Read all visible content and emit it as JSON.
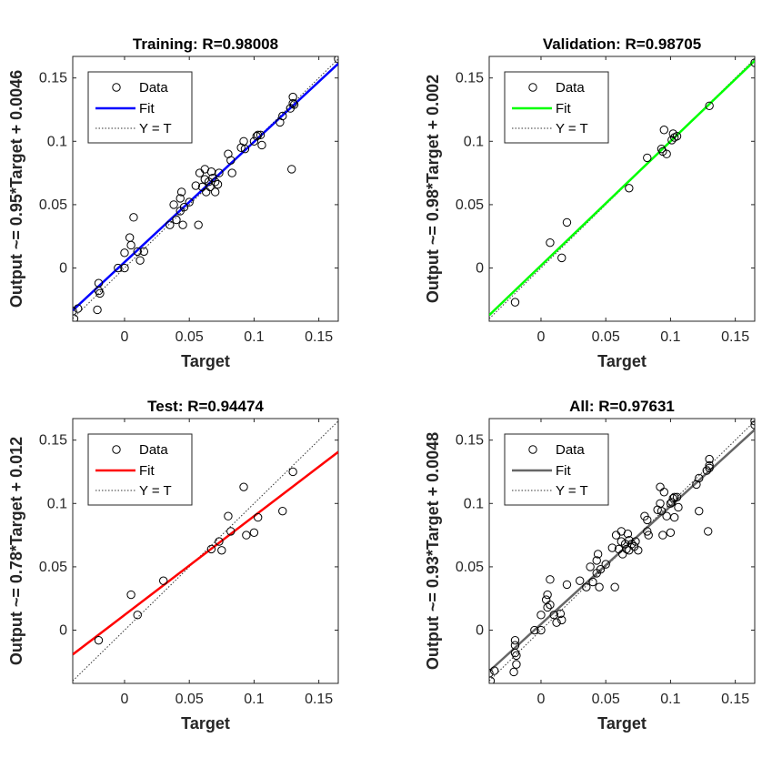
{
  "chart_data": [
    {
      "type": "scatter",
      "title": "Training: R=0.98008",
      "xlabel": "Target",
      "ylabel": "Output ~= 0.95*Target + 0.0046",
      "xlim": [
        -0.04,
        0.165
      ],
      "ylim": [
        -0.042,
        0.167
      ],
      "xticks": [
        "0",
        "0.05",
        "0.1",
        "0.15"
      ],
      "xtick_values": [
        0,
        0.05,
        0.1,
        0.15
      ],
      "yticks": [
        "0",
        "0.05",
        "0.1",
        "0.15"
      ],
      "ytick_values": [
        0,
        0.05,
        0.1,
        0.15
      ],
      "fit": {
        "slope": 0.95,
        "intercept": 0.0046,
        "color": "#0000ff"
      },
      "legend": {
        "position": "top-left",
        "entries": [
          "Data",
          "Fit",
          "Y = T"
        ]
      },
      "grid": false,
      "points": [
        [
          -0.04,
          -0.034
        ],
        [
          -0.039,
          -0.04
        ],
        [
          -0.036,
          -0.032
        ],
        [
          -0.02,
          -0.012
        ],
        [
          -0.02,
          -0.018
        ],
        [
          -0.021,
          -0.033
        ],
        [
          -0.019,
          -0.02
        ],
        [
          -0.005,
          0.0
        ],
        [
          0.0,
          0.0
        ],
        [
          0.0,
          0.012
        ],
        [
          0.004,
          0.024
        ],
        [
          0.005,
          0.018
        ],
        [
          0.007,
          0.04
        ],
        [
          0.01,
          0.013
        ],
        [
          0.012,
          0.006
        ],
        [
          0.015,
          0.013
        ],
        [
          0.035,
          0.034
        ],
        [
          0.038,
          0.05
        ],
        [
          0.04,
          0.038
        ],
        [
          0.043,
          0.045
        ],
        [
          0.043,
          0.055
        ],
        [
          0.044,
          0.06
        ],
        [
          0.045,
          0.034
        ],
        [
          0.046,
          0.048
        ],
        [
          0.05,
          0.052
        ],
        [
          0.055,
          0.065
        ],
        [
          0.057,
          0.034
        ],
        [
          0.058,
          0.075
        ],
        [
          0.06,
          0.064
        ],
        [
          0.062,
          0.07
        ],
        [
          0.062,
          0.078
        ],
        [
          0.063,
          0.06
        ],
        [
          0.065,
          0.068
        ],
        [
          0.066,
          0.064
        ],
        [
          0.067,
          0.076
        ],
        [
          0.068,
          0.071
        ],
        [
          0.07,
          0.068
        ],
        [
          0.07,
          0.06
        ],
        [
          0.072,
          0.066
        ],
        [
          0.073,
          0.075
        ],
        [
          0.08,
          0.09
        ],
        [
          0.082,
          0.085
        ],
        [
          0.083,
          0.075
        ],
        [
          0.09,
          0.095
        ],
        [
          0.092,
          0.1
        ],
        [
          0.093,
          0.094
        ],
        [
          0.1,
          0.1
        ],
        [
          0.102,
          0.104
        ],
        [
          0.103,
          0.105
        ],
        [
          0.105,
          0.105
        ],
        [
          0.106,
          0.097
        ],
        [
          0.12,
          0.115
        ],
        [
          0.122,
          0.12
        ],
        [
          0.128,
          0.126
        ],
        [
          0.13,
          0.13
        ],
        [
          0.13,
          0.135
        ],
        [
          0.131,
          0.129
        ],
        [
          0.129,
          0.078
        ],
        [
          0.165,
          0.165
        ]
      ]
    },
    {
      "type": "scatter",
      "title": "Validation: R=0.98705",
      "xlabel": "Target",
      "ylabel": "Output ~= 0.98*Target + 0.002",
      "xlim": [
        -0.04,
        0.165
      ],
      "ylim": [
        -0.042,
        0.167
      ],
      "xticks": [
        "0",
        "0.05",
        "0.1",
        "0.15"
      ],
      "xtick_values": [
        0,
        0.05,
        0.1,
        0.15
      ],
      "yticks": [
        "0",
        "0.05",
        "0.1",
        "0.15"
      ],
      "ytick_values": [
        0,
        0.05,
        0.1,
        0.15
      ],
      "fit": {
        "slope": 0.98,
        "intercept": 0.002,
        "color": "#00ff00"
      },
      "legend": {
        "position": "top-left",
        "entries": [
          "Data",
          "Fit",
          "Y = T"
        ]
      },
      "grid": false,
      "points": [
        [
          -0.02,
          -0.027
        ],
        [
          0.007,
          0.02
        ],
        [
          0.016,
          0.008
        ],
        [
          0.02,
          0.036
        ],
        [
          0.068,
          0.063
        ],
        [
          0.082,
          0.087
        ],
        [
          0.093,
          0.094
        ],
        [
          0.094,
          0.092
        ],
        [
          0.095,
          0.109
        ],
        [
          0.097,
          0.09
        ],
        [
          0.101,
          0.101
        ],
        [
          0.102,
          0.106
        ],
        [
          0.103,
          0.103
        ],
        [
          0.105,
          0.104
        ],
        [
          0.13,
          0.128
        ],
        [
          0.165,
          0.162
        ]
      ]
    },
    {
      "type": "scatter",
      "title": "Test: R=0.94474",
      "xlabel": "Target",
      "ylabel": "Output ~= 0.78*Target + 0.012",
      "xlim": [
        -0.04,
        0.165
      ],
      "ylim": [
        -0.042,
        0.167
      ],
      "xticks": [
        "0",
        "0.05",
        "0.1",
        "0.15"
      ],
      "xtick_values": [
        0,
        0.05,
        0.1,
        0.15
      ],
      "yticks": [
        "0",
        "0.05",
        "0.1",
        "0.15"
      ],
      "ytick_values": [
        0,
        0.05,
        0.1,
        0.15
      ],
      "fit": {
        "slope": 0.78,
        "intercept": 0.012,
        "color": "#ff0000"
      },
      "legend": {
        "position": "top-left",
        "entries": [
          "Data",
          "Fit",
          "Y = T"
        ]
      },
      "grid": false,
      "points": [
        [
          -0.02,
          -0.008
        ],
        [
          0.005,
          0.028
        ],
        [
          0.01,
          0.012
        ],
        [
          0.03,
          0.039
        ],
        [
          0.067,
          0.064
        ],
        [
          0.073,
          0.07
        ],
        [
          0.075,
          0.063
        ],
        [
          0.08,
          0.09
        ],
        [
          0.082,
          0.078
        ],
        [
          0.092,
          0.113
        ],
        [
          0.094,
          0.075
        ],
        [
          0.1,
          0.077
        ],
        [
          0.103,
          0.089
        ],
        [
          0.122,
          0.094
        ],
        [
          0.13,
          0.125
        ]
      ]
    },
    {
      "type": "scatter",
      "title": "All: R=0.97631",
      "xlabel": "Target",
      "ylabel": "Output ~= 0.93*Target + 0.0048",
      "xlim": [
        -0.04,
        0.165
      ],
      "ylim": [
        -0.042,
        0.167
      ],
      "xticks": [
        "0",
        "0.05",
        "0.1",
        "0.15"
      ],
      "xtick_values": [
        0,
        0.05,
        0.1,
        0.15
      ],
      "yticks": [
        "0",
        "0.05",
        "0.1",
        "0.15"
      ],
      "ytick_values": [
        0,
        0.05,
        0.1,
        0.15
      ],
      "fit": {
        "slope": 0.93,
        "intercept": 0.0048,
        "color": "#666666"
      },
      "legend": {
        "position": "top-left",
        "entries": [
          "Data",
          "Fit",
          "Y = T"
        ]
      },
      "grid": false,
      "points": [
        [
          -0.04,
          -0.034
        ],
        [
          -0.039,
          -0.04
        ],
        [
          -0.036,
          -0.032
        ],
        [
          -0.02,
          -0.012
        ],
        [
          -0.02,
          -0.018
        ],
        [
          -0.021,
          -0.033
        ],
        [
          -0.019,
          -0.027
        ],
        [
          -0.02,
          -0.008
        ],
        [
          -0.019,
          -0.02
        ],
        [
          -0.005,
          0.0
        ],
        [
          0.0,
          0.0
        ],
        [
          0.0,
          0.012
        ],
        [
          0.004,
          0.024
        ],
        [
          0.005,
          0.028
        ],
        [
          0.005,
          0.018
        ],
        [
          0.007,
          0.04
        ],
        [
          0.007,
          0.02
        ],
        [
          0.01,
          0.012
        ],
        [
          0.012,
          0.006
        ],
        [
          0.015,
          0.013
        ],
        [
          0.016,
          0.008
        ],
        [
          0.02,
          0.036
        ],
        [
          0.03,
          0.039
        ],
        [
          0.035,
          0.034
        ],
        [
          0.038,
          0.05
        ],
        [
          0.04,
          0.038
        ],
        [
          0.043,
          0.045
        ],
        [
          0.043,
          0.055
        ],
        [
          0.044,
          0.06
        ],
        [
          0.045,
          0.034
        ],
        [
          0.046,
          0.048
        ],
        [
          0.05,
          0.052
        ],
        [
          0.055,
          0.065
        ],
        [
          0.057,
          0.034
        ],
        [
          0.058,
          0.075
        ],
        [
          0.06,
          0.064
        ],
        [
          0.062,
          0.07
        ],
        [
          0.062,
          0.078
        ],
        [
          0.063,
          0.06
        ],
        [
          0.065,
          0.068
        ],
        [
          0.066,
          0.064
        ],
        [
          0.067,
          0.076
        ],
        [
          0.068,
          0.063
        ],
        [
          0.068,
          0.071
        ],
        [
          0.07,
          0.068
        ],
        [
          0.072,
          0.066
        ],
        [
          0.073,
          0.07
        ],
        [
          0.075,
          0.063
        ],
        [
          0.08,
          0.09
        ],
        [
          0.082,
          0.087
        ],
        [
          0.082,
          0.078
        ],
        [
          0.083,
          0.075
        ],
        [
          0.09,
          0.095
        ],
        [
          0.092,
          0.1
        ],
        [
          0.092,
          0.113
        ],
        [
          0.093,
          0.094
        ],
        [
          0.094,
          0.075
        ],
        [
          0.095,
          0.109
        ],
        [
          0.097,
          0.09
        ],
        [
          0.1,
          0.077
        ],
        [
          0.1,
          0.1
        ],
        [
          0.101,
          0.101
        ],
        [
          0.102,
          0.104
        ],
        [
          0.103,
          0.105
        ],
        [
          0.103,
          0.089
        ],
        [
          0.105,
          0.105
        ],
        [
          0.106,
          0.097
        ],
        [
          0.12,
          0.115
        ],
        [
          0.122,
          0.094
        ],
        [
          0.122,
          0.12
        ],
        [
          0.128,
          0.126
        ],
        [
          0.13,
          0.13
        ],
        [
          0.13,
          0.135
        ],
        [
          0.13,
          0.128
        ],
        [
          0.129,
          0.078
        ],
        [
          0.165,
          0.165
        ],
        [
          0.165,
          0.162
        ]
      ]
    }
  ]
}
